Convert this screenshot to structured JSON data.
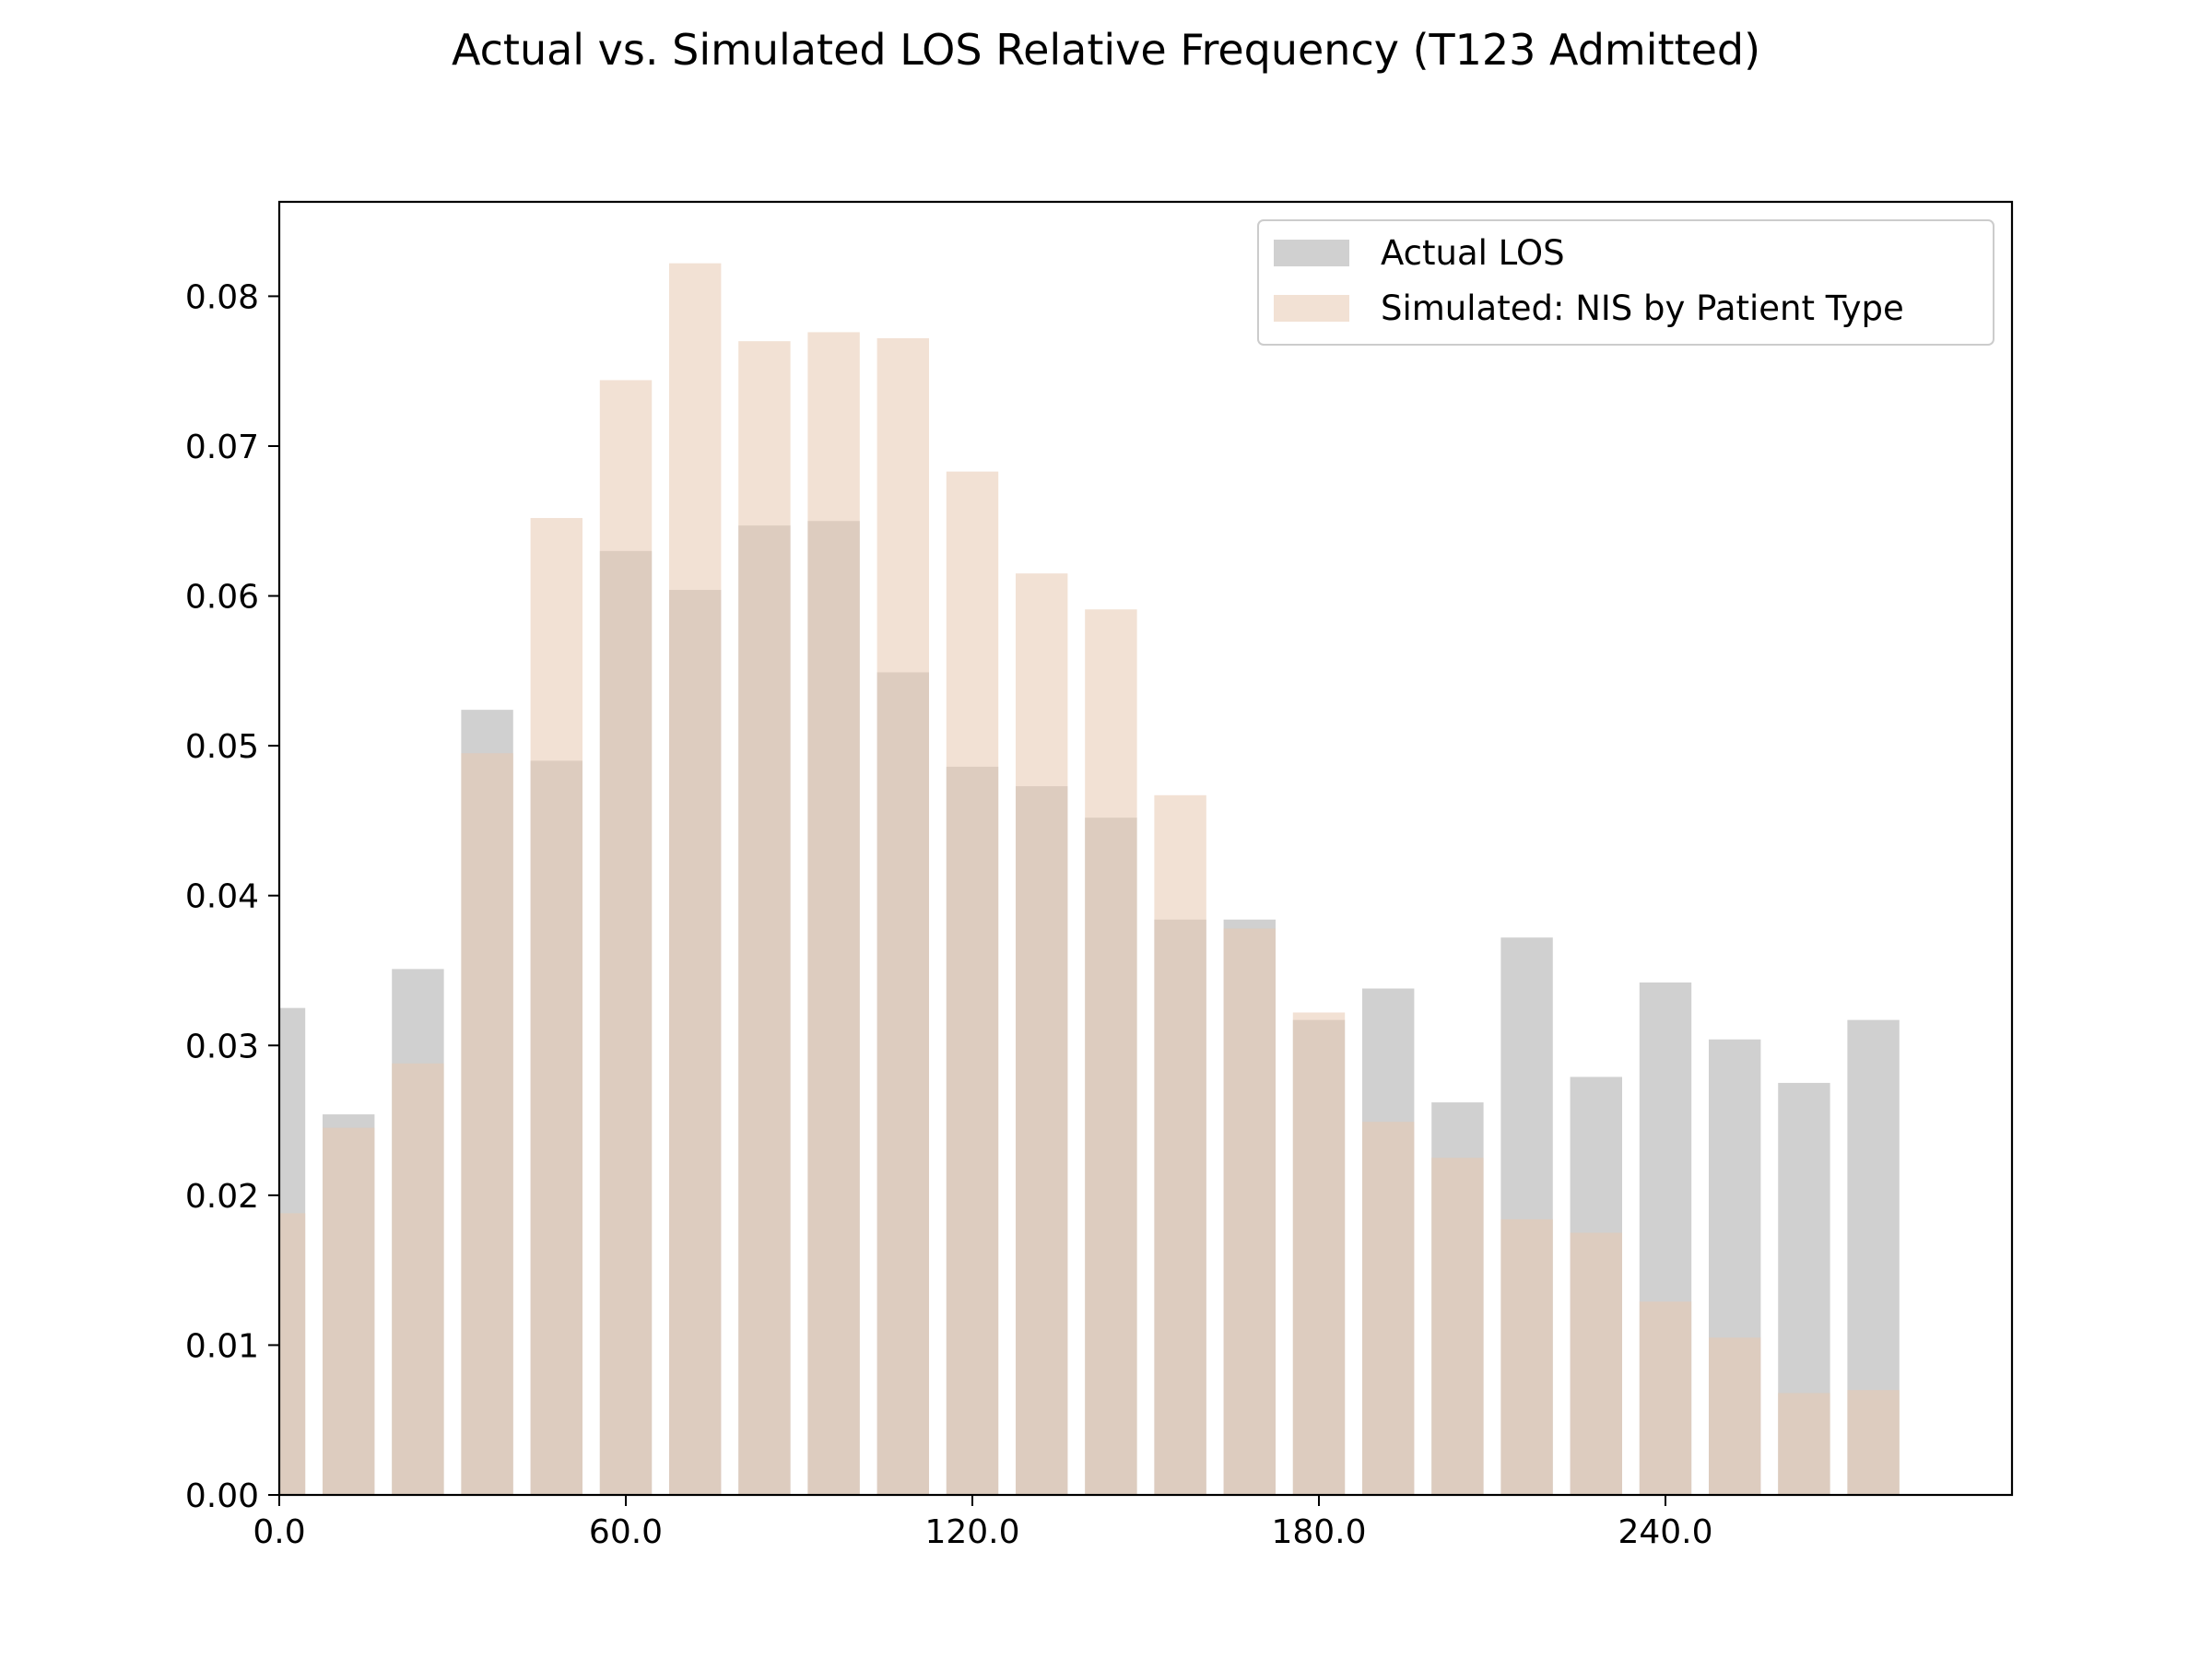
{
  "chart_data": {
    "type": "bar",
    "title": "Actual vs. Simulated LOS Relative Frequency (T123 Admitted)",
    "xlabel": "",
    "ylabel": "",
    "xlim": [
      0,
      300
    ],
    "ylim": [
      0,
      0.0863
    ],
    "bin_width": 10,
    "x_ticks": [
      0,
      60,
      120,
      180,
      240
    ],
    "x_tick_labels": [
      "0.0",
      "60.0",
      "120.0",
      "180.0",
      "240.0"
    ],
    "y_ticks": [
      0,
      0.01,
      0.02,
      0.03,
      0.04,
      0.05,
      0.06,
      0.07,
      0.08
    ],
    "y_tick_labels": [
      "0.00",
      "0.01",
      "0.02",
      "0.03",
      "0.04",
      "0.05",
      "0.06",
      "0.07",
      "0.08"
    ],
    "x": [
      0,
      12,
      24,
      36,
      48,
      60,
      72,
      84,
      96,
      108,
      120,
      132,
      144,
      156,
      168,
      180,
      192,
      204,
      216,
      228,
      240,
      252,
      264,
      276
    ],
    "series": [
      {
        "name": "Actual LOS",
        "color": "#aaaaaa",
        "opacity": 0.55,
        "values": [
          0.0325,
          0.0254,
          0.0351,
          0.0524,
          0.049,
          0.063,
          0.0604,
          0.0647,
          0.065,
          0.0549,
          0.0486,
          0.0473,
          0.0452,
          0.0384,
          0.0384,
          0.0317,
          0.0338,
          0.0262,
          0.0372,
          0.0279,
          0.0342,
          0.0304,
          0.0275,
          0.0317
        ]
      },
      {
        "name": "Simulated: NIS by Patient Type",
        "color": "#e8c8b0",
        "opacity": 0.55,
        "values": [
          0.0188,
          0.0245,
          0.0288,
          0.0495,
          0.0652,
          0.0744,
          0.0822,
          0.077,
          0.0776,
          0.0772,
          0.0683,
          0.0615,
          0.0591,
          0.0467,
          0.0378,
          0.0322,
          0.0249,
          0.0225,
          0.0184,
          0.0175,
          0.0129,
          0.0105,
          0.0068,
          0.007
        ]
      }
    ],
    "legend": {
      "position": "top-right",
      "entries": [
        "Actual LOS",
        "Simulated: NIS by Patient Type"
      ]
    },
    "grid": false
  }
}
